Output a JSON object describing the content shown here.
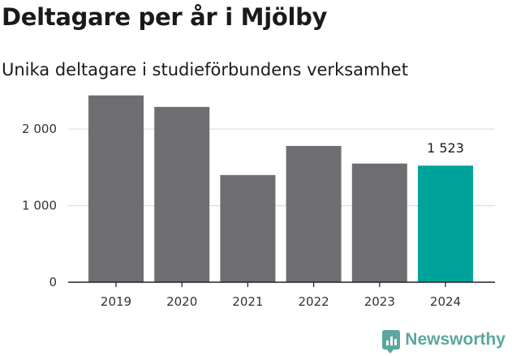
{
  "title": "Deltagare per år i Mjölby",
  "subtitle": "Unika deltagare i studieförbundens verksamhet",
  "brand": {
    "name": "Newsworthy",
    "icon": "bar-chart-speech-icon",
    "color": "#5aa89f"
  },
  "chart_data": {
    "type": "bar",
    "title": "Deltagare per år i Mjölby",
    "subtitle": "Unika deltagare i studieförbundens verksamhet",
    "categories": [
      "2019",
      "2020",
      "2021",
      "2022",
      "2023",
      "2024"
    ],
    "values": [
      2440,
      2290,
      1400,
      1780,
      1550,
      1523
    ],
    "ylim": [
      0,
      2500
    ],
    "yticks": [
      0,
      1000,
      2000
    ],
    "ytick_labels": [
      "0",
      "1 000",
      "2 000"
    ],
    "grid": true,
    "colors": {
      "default": "#6e6d72",
      "highlight": "#00a39a"
    },
    "highlight_index": 5,
    "data_label": {
      "index": 5,
      "text": "1 523"
    }
  }
}
